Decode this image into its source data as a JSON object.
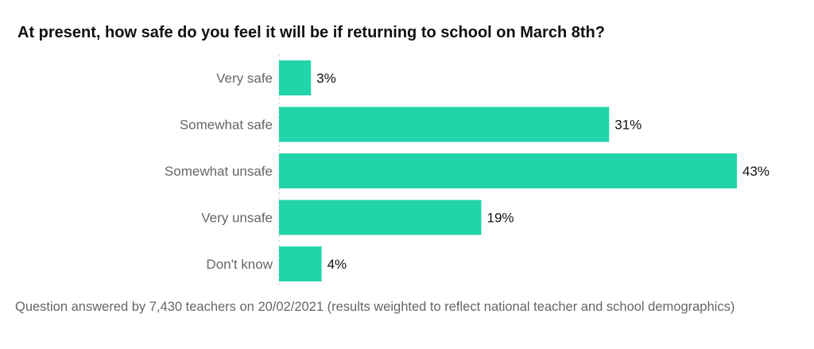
{
  "chart_data": {
    "type": "bar",
    "orientation": "horizontal",
    "title": "At present, how safe do you feel it will be if returning to school on March 8th?",
    "categories": [
      "Very safe",
      "Somewhat safe",
      "Somewhat unsafe",
      "Very unsafe",
      "Don't know"
    ],
    "values": [
      3,
      31,
      43,
      19,
      4
    ],
    "value_labels": [
      "3%",
      "31%",
      "43%",
      "19%",
      "4%"
    ],
    "xlabel": "",
    "ylabel": "",
    "xlim": [
      0,
      43
    ],
    "grid": false,
    "bar_color": "#21d4a9",
    "footnote": "Question answered by 7,430 teachers on 20/02/2021 (results weighted to reflect national teacher and school demographics)"
  }
}
